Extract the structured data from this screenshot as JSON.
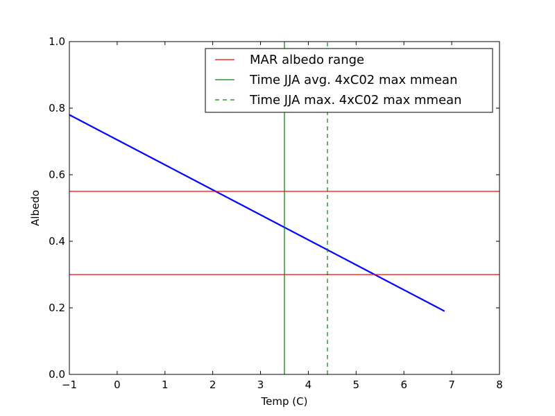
{
  "chart_data": {
    "type": "line",
    "xlabel": "Temp (C)",
    "ylabel": "Albedo",
    "xlim": [
      -1,
      8
    ],
    "ylim": [
      0.0,
      1.0
    ],
    "x_ticks": [
      -1,
      0,
      1,
      2,
      3,
      4,
      5,
      6,
      7,
      8
    ],
    "x_tick_labels": [
      "−1",
      "0",
      "1",
      "2",
      "3",
      "4",
      "5",
      "6",
      "7",
      "8"
    ],
    "y_ticks": [
      0.0,
      0.2,
      0.4,
      0.6,
      0.8,
      1.0
    ],
    "y_tick_labels": [
      "0.0",
      "0.2",
      "0.4",
      "0.6",
      "0.8",
      "1.0"
    ],
    "grid": false,
    "legend_position": "top-right",
    "series": [
      {
        "kind": "line",
        "color": "#0000ff",
        "style": "solid",
        "x": [
          -1.0,
          6.85
        ],
        "y": [
          0.78,
          0.19
        ]
      },
      {
        "name": "MAR albedo range",
        "kind": "hline",
        "color": "#ff0000",
        "style": "solid",
        "y_values": [
          0.55,
          0.3
        ]
      },
      {
        "name": "Time JJA avg. 4xC02 max mmean",
        "kind": "vline",
        "color": "#008000",
        "style": "solid",
        "x_values": [
          3.5
        ]
      },
      {
        "name": "Time JJA max. 4xC02 max mmean",
        "kind": "vline",
        "color": "#008000",
        "style": "dashed",
        "x_values": [
          4.4
        ]
      }
    ]
  }
}
